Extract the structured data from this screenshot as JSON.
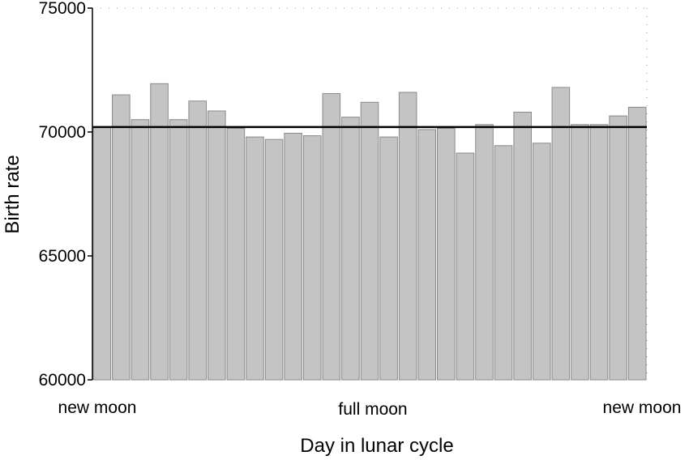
{
  "chart_data": {
    "type": "bar",
    "title": "",
    "xlabel": "Day in lunar cycle",
    "ylabel": "Birth rate",
    "ylim": [
      60000,
      75000
    ],
    "yticks": [
      60000,
      65000,
      70000,
      75000
    ],
    "x_category_labels": [
      "new moon",
      "full moon",
      "new moon"
    ],
    "values": [
      70200,
      71500,
      70500,
      71950,
      70500,
      71250,
      70850,
      70150,
      69800,
      69700,
      69950,
      69850,
      71550,
      70600,
      71200,
      69800,
      71600,
      70100,
      70150,
      69150,
      70300,
      69450,
      70800,
      69550,
      71800,
      70300,
      70300,
      70650,
      71000
    ],
    "reference_line": 70200,
    "bar_color": "#c4c4c4",
    "bar_edge_color": "#8a8a8a",
    "reference_line_color": "#000000",
    "grid": false
  }
}
